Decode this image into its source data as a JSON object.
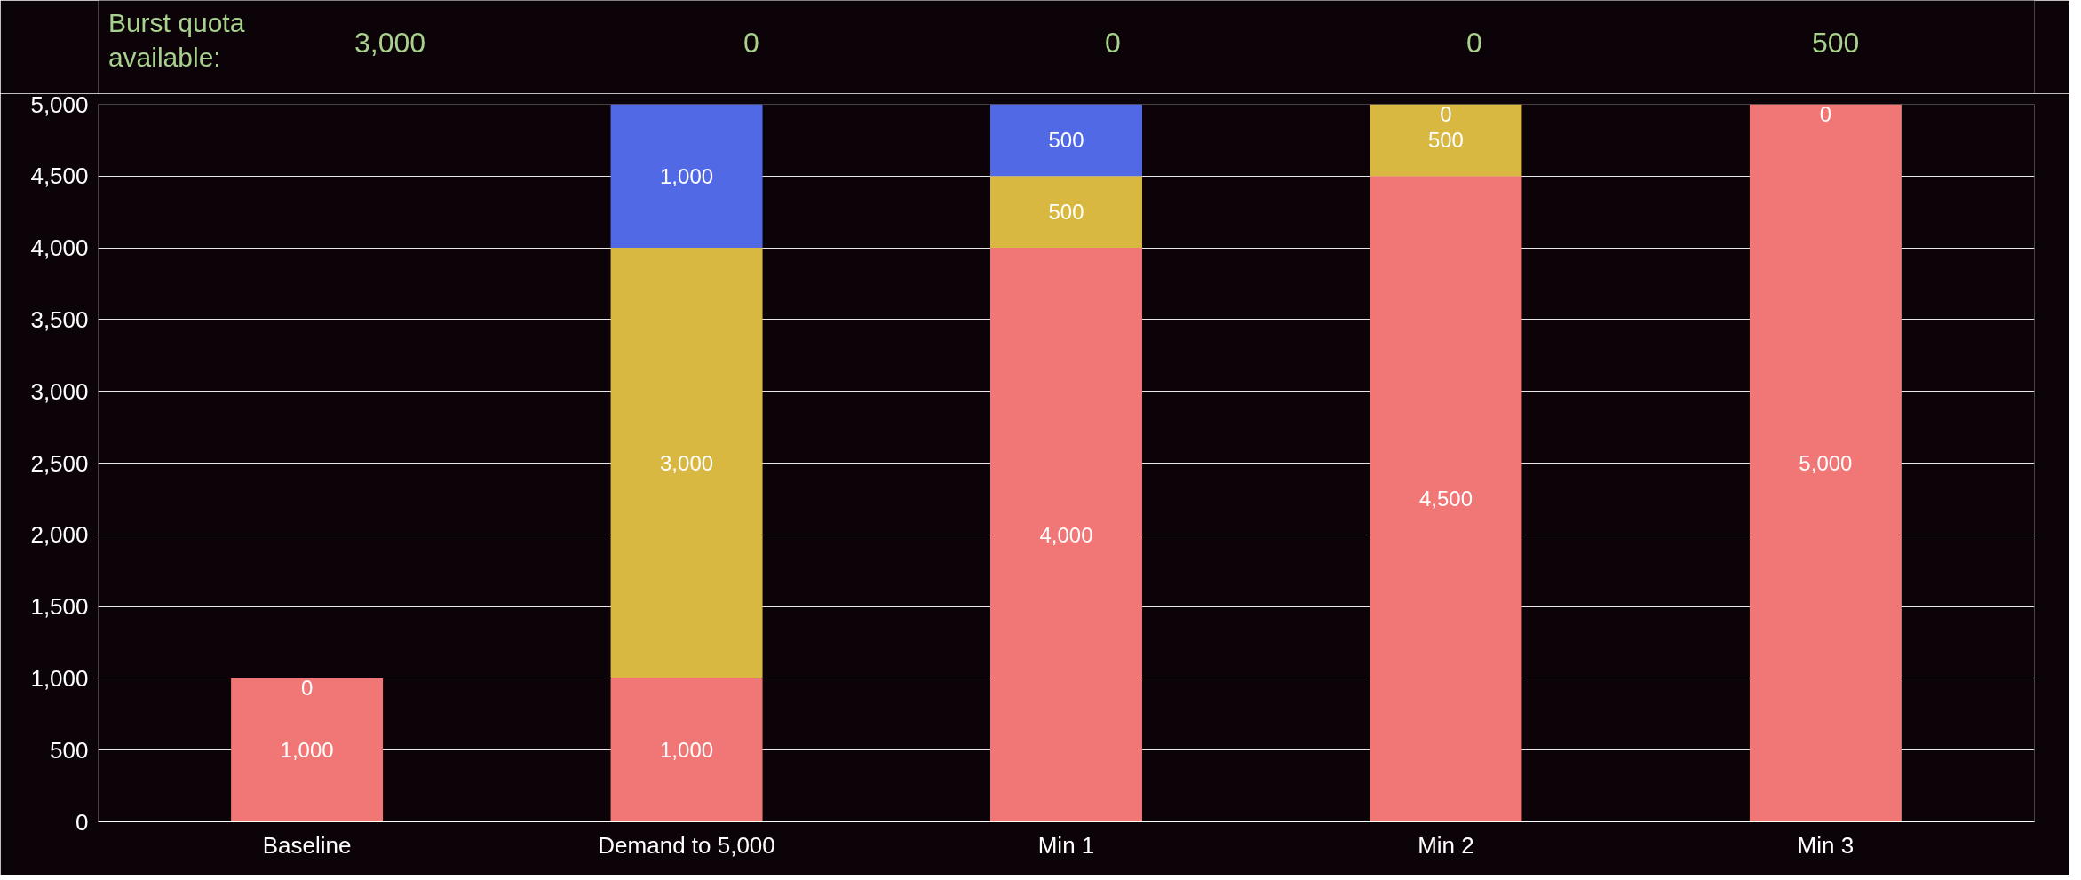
{
  "chart_data": {
    "type": "bar",
    "stacked": true,
    "categories": [
      "Baseline",
      "Demand to 5,000",
      "Min 1",
      "Min 2",
      "Min 3"
    ],
    "series": [
      {
        "color": "#f07775",
        "values": [
          1000,
          1000,
          4000,
          4500,
          5000
        ],
        "value_labels": [
          "1,000",
          "1,000",
          "4,000",
          "4,500",
          "5,000"
        ]
      },
      {
        "color": "#d9b842",
        "values": [
          0,
          3000,
          500,
          500,
          0
        ],
        "value_labels": [
          "0",
          "3,000",
          "500",
          "500",
          "0"
        ]
      },
      {
        "color": "#5269e6",
        "values": [
          0,
          1000,
          500,
          0,
          0
        ],
        "value_labels": [
          null,
          "1,000",
          "500",
          "0",
          null
        ]
      }
    ],
    "ylim": [
      0,
      5000
    ],
    "yticks": [
      {
        "value": 0,
        "label": "0"
      },
      {
        "value": 500,
        "label": "500"
      },
      {
        "value": 1000,
        "label": "1,000"
      },
      {
        "value": 1500,
        "label": "1,500"
      },
      {
        "value": 2000,
        "label": "2,000"
      },
      {
        "value": 2500,
        "label": "2,500"
      },
      {
        "value": 3000,
        "label": "3,000"
      },
      {
        "value": 3500,
        "label": "3,500"
      },
      {
        "value": 4000,
        "label": "4,000"
      },
      {
        "value": 4500,
        "label": "4,500"
      },
      {
        "value": 5000,
        "label": "5,000"
      }
    ],
    "grid": "y",
    "annotations": [
      "Burst quota available:",
      "3,000",
      "0",
      "0",
      "0",
      "500"
    ]
  }
}
